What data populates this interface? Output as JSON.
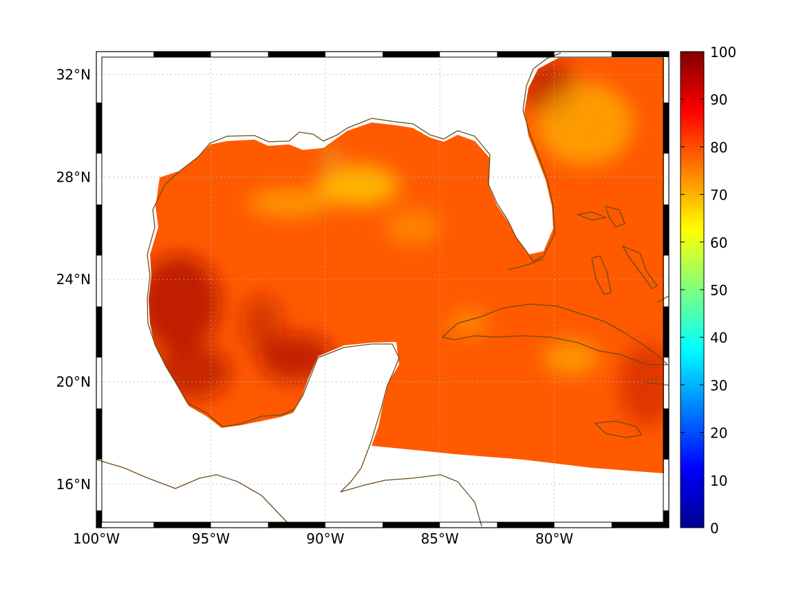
{
  "map": {
    "lat_labels": [
      "32°N",
      "28°N",
      "24°N",
      "20°N",
      "16°N"
    ],
    "lon_labels": [
      "100°W",
      "95°W",
      "90°W",
      "85°W",
      "80°W"
    ],
    "lat_values": [
      32,
      28,
      24,
      20,
      16
    ],
    "lon_values": [
      -100,
      -95,
      -90,
      -85,
      -80
    ],
    "lon_range": [
      -100,
      -75
    ],
    "lat_range": [
      14.3,
      32.9
    ],
    "gridlines": true
  },
  "colorbar": {
    "tick_labels": [
      "100",
      "90",
      "80",
      "70",
      "60",
      "50",
      "40",
      "30",
      "20",
      "10",
      "0"
    ],
    "range": [
      0,
      100
    ],
    "colormap": "jet"
  },
  "colors": {
    "coastline": "#6b4a16",
    "field_main": "#ff5a00",
    "field_high": "#b01000",
    "field_low": "#ffd200"
  }
}
